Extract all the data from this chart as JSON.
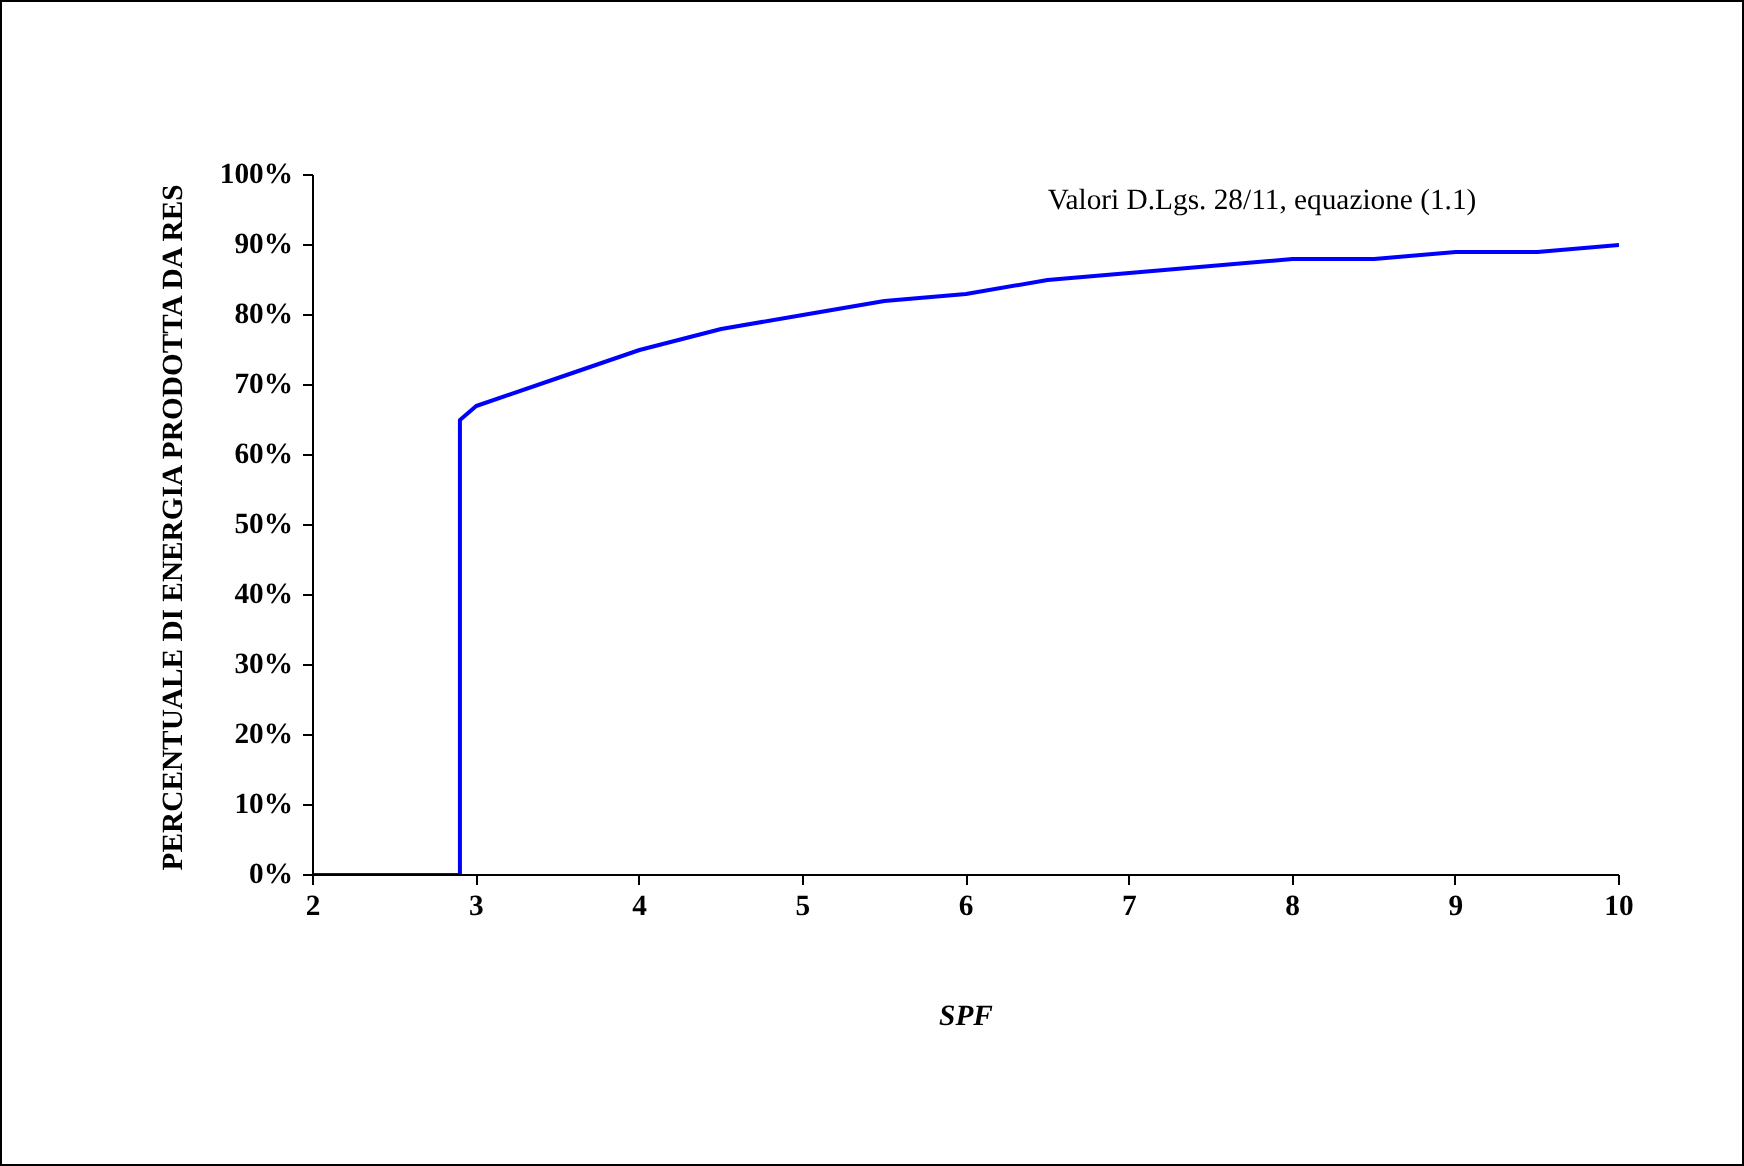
{
  "chart_data": {
    "type": "line",
    "xlabel": "SPF",
    "ylabel": "PERCENTUALE DI ENERGIA PRODOTTA DA RES",
    "annotations": [
      "Valori D.Lgs. 28/11, equazione (1.1)"
    ],
    "series": [
      {
        "color": "#0000ff",
        "x": [
          2,
          2.9,
          2.9,
          3,
          3.5,
          4,
          4.5,
          5,
          5.5,
          6,
          6.5,
          7,
          7.5,
          8,
          8.5,
          9,
          9.5,
          10
        ],
        "values": [
          0,
          0,
          65,
          67,
          71,
          75,
          78,
          80,
          82,
          83,
          85,
          86,
          87,
          88,
          88,
          89,
          89,
          90
        ]
      }
    ],
    "xlim": [
      2,
      10
    ],
    "xticks": [
      2,
      3,
      4,
      5,
      6,
      7,
      8,
      9,
      10
    ],
    "ylim": [
      0,
      100
    ],
    "yticks": [
      {
        "value": 0,
        "label": "0%"
      },
      {
        "value": 10,
        "label": "10%"
      },
      {
        "value": 20,
        "label": "20%"
      },
      {
        "value": 30,
        "label": "30%"
      },
      {
        "value": 40,
        "label": "40%"
      },
      {
        "value": 50,
        "label": "50%"
      },
      {
        "value": 60,
        "label": "60%"
      },
      {
        "value": 70,
        "label": "70%"
      },
      {
        "value": 80,
        "label": "80%"
      },
      {
        "value": 90,
        "label": "90%"
      },
      {
        "value": 100,
        "label": "100%"
      }
    ],
    "grid": false,
    "marker": "none",
    "line_style": "solid"
  }
}
